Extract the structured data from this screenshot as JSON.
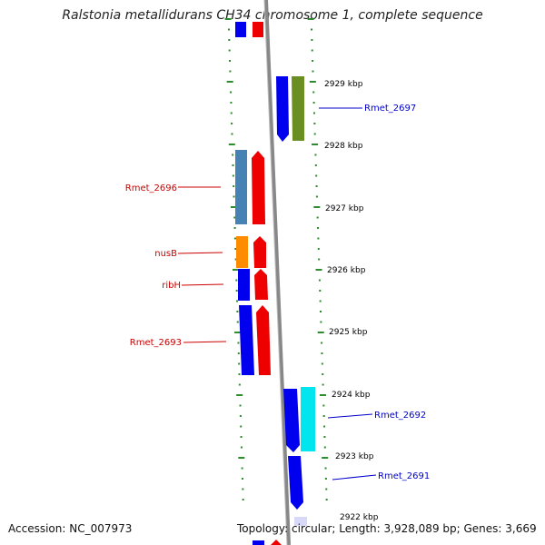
{
  "title": "Ralstonia metallidurans CH34 chromosome 1, complete sequence",
  "footer": {
    "accession": "Accession: NC_007973",
    "topology": "Topology: circular; Length: 3,928,089 bp; Genes: 3,669"
  },
  "colors": {
    "axis": "#808080",
    "tick": "#2e8b2e",
    "left_label": "#cc0000",
    "right_label": "#0000cc",
    "blue": "#0000ee",
    "red": "#ee0000",
    "steel": "#4682b4",
    "orange": "#ff8c00",
    "olive": "#6b8e23",
    "cyan": "#00e5ee",
    "pale": "#d8d8f8"
  },
  "kbp_labels": [
    "2929 kbp",
    "2928 kbp",
    "2927 kbp",
    "2926 kbp",
    "2925 kbp",
    "2924 kbp",
    "2923 kbp",
    "2922 kbp"
  ],
  "left_labels": [
    "Rmet_2696",
    "nusB",
    "ribH",
    "Rmet_2693"
  ],
  "right_labels": [
    "Rmet_2697",
    "Rmet_2692",
    "Rmet_2691"
  ]
}
